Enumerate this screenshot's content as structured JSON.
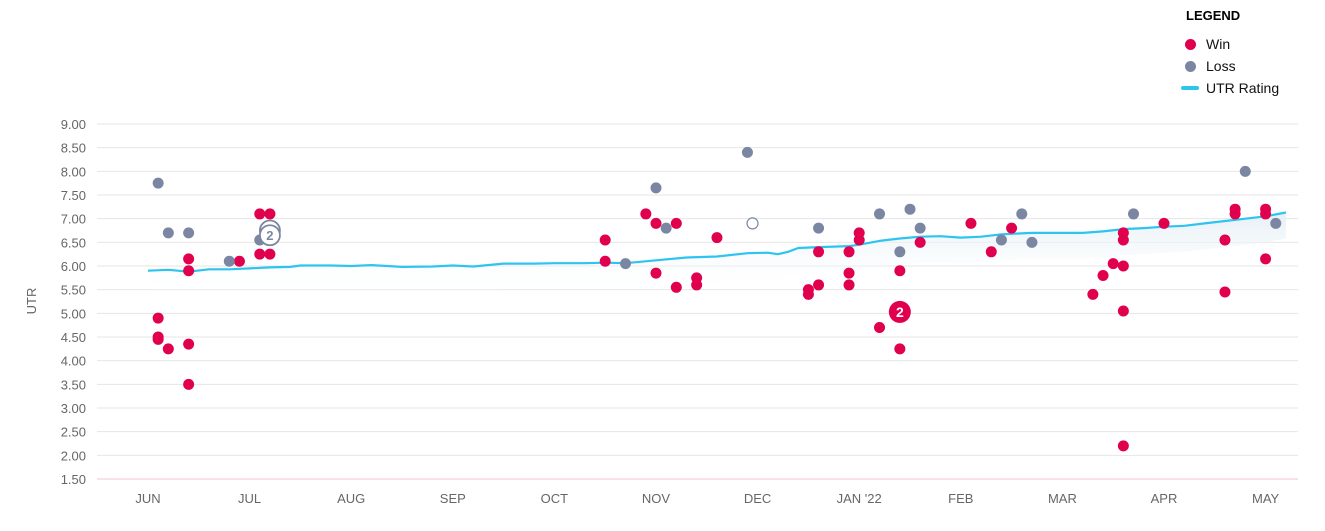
{
  "chart_data": {
    "type": "scatter",
    "ylabel": "UTR",
    "ylim": [
      1.5,
      9.0
    ],
    "yticks": [
      "9.00",
      "8.50",
      "8.00",
      "7.50",
      "7.00",
      "6.50",
      "6.00",
      "5.50",
      "5.00",
      "4.50",
      "4.00",
      "3.50",
      "3.00",
      "2.50",
      "2.00",
      "1.50"
    ],
    "months": [
      "JUN",
      "JUL",
      "AUG",
      "SEP",
      "OCT",
      "NOV",
      "DEC",
      "JAN '22",
      "FEB",
      "MAR",
      "APR",
      "MAY"
    ],
    "grid": true,
    "legend": {
      "title": "LEGEND",
      "placement": "top-right",
      "items": [
        {
          "label": "Win",
          "color": "#e0004d",
          "kind": "dot"
        },
        {
          "label": "Loss",
          "color": "#7a86a2",
          "kind": "dot"
        },
        {
          "label": "UTR Rating",
          "color": "#2ec4f0",
          "kind": "line"
        }
      ]
    },
    "colors": {
      "win": "#e0004d",
      "loss": "#7a86a2",
      "rating": "#2ec4f0"
    },
    "series": [
      {
        "name": "Win",
        "points": [
          [
            0.1,
            4.9
          ],
          [
            0.1,
            4.5
          ],
          [
            0.1,
            4.45
          ],
          [
            0.2,
            4.25
          ],
          [
            0.4,
            6.15
          ],
          [
            0.4,
            5.9
          ],
          [
            0.4,
            4.35
          ],
          [
            0.4,
            3.5
          ],
          [
            0.9,
            6.1
          ],
          [
            1.1,
            7.1
          ],
          [
            1.1,
            6.25
          ],
          [
            1.2,
            7.1
          ],
          [
            1.2,
            6.25
          ],
          [
            4.5,
            6.55
          ],
          [
            4.5,
            6.1
          ],
          [
            4.9,
            7.1
          ],
          [
            5.0,
            6.9
          ],
          [
            5.0,
            5.85
          ],
          [
            5.2,
            6.9
          ],
          [
            5.2,
            5.55
          ],
          [
            5.4,
            5.75
          ],
          [
            5.4,
            5.6
          ],
          [
            5.6,
            6.6
          ],
          [
            6.5,
            5.5
          ],
          [
            6.5,
            5.4
          ],
          [
            6.6,
            6.3
          ],
          [
            6.6,
            5.6
          ],
          [
            6.9,
            6.3
          ],
          [
            6.9,
            5.85
          ],
          [
            6.9,
            5.6
          ],
          [
            7.0,
            6.7
          ],
          [
            7.0,
            6.55
          ],
          [
            7.2,
            4.7
          ],
          [
            7.4,
            5.9
          ],
          [
            7.4,
            4.25
          ],
          [
            7.6,
            6.5
          ],
          [
            8.1,
            6.9
          ],
          [
            8.3,
            6.3
          ],
          [
            8.5,
            6.8
          ],
          [
            9.3,
            5.4
          ],
          [
            9.4,
            5.8
          ],
          [
            9.5,
            6.05
          ],
          [
            9.6,
            6.7
          ],
          [
            9.6,
            6.55
          ],
          [
            9.6,
            6.0
          ],
          [
            9.6,
            5.05
          ],
          [
            9.6,
            2.2
          ],
          [
            10.0,
            6.9
          ],
          [
            10.6,
            6.55
          ],
          [
            10.6,
            5.45
          ],
          [
            10.7,
            7.2
          ],
          [
            10.7,
            7.1
          ],
          [
            11.0,
            7.2
          ],
          [
            11.0,
            7.1
          ],
          [
            11.0,
            6.15
          ]
        ]
      },
      {
        "name": "Loss",
        "points": [
          [
            0.1,
            7.75
          ],
          [
            0.2,
            6.7
          ],
          [
            0.4,
            6.7
          ],
          [
            0.8,
            6.1
          ],
          [
            1.1,
            6.55
          ],
          [
            4.7,
            6.05
          ],
          [
            5.0,
            7.65
          ],
          [
            5.1,
            6.8
          ],
          [
            5.9,
            8.4
          ],
          [
            6.6,
            6.8
          ],
          [
            7.2,
            7.1
          ],
          [
            7.4,
            6.3
          ],
          [
            7.5,
            7.2
          ],
          [
            7.6,
            6.8
          ],
          [
            8.4,
            6.55
          ],
          [
            8.6,
            7.1
          ],
          [
            8.7,
            6.5
          ],
          [
            9.7,
            7.1
          ],
          [
            10.8,
            8.0
          ],
          [
            11.1,
            6.9
          ]
        ]
      },
      {
        "name": "UTR Rating",
        "points": [
          [
            0.0,
            5.9
          ],
          [
            0.2,
            5.92
          ],
          [
            0.4,
            5.88
          ],
          [
            0.6,
            5.93
          ],
          [
            0.8,
            5.93
          ],
          [
            1.0,
            5.95
          ],
          [
            1.2,
            5.97
          ],
          [
            1.4,
            5.98
          ],
          [
            1.5,
            6.01
          ],
          [
            1.8,
            6.01
          ],
          [
            2.0,
            6.0
          ],
          [
            2.2,
            6.02
          ],
          [
            2.5,
            5.98
          ],
          [
            2.8,
            5.99
          ],
          [
            3.0,
            6.01
          ],
          [
            3.2,
            5.99
          ],
          [
            3.5,
            6.05
          ],
          [
            3.8,
            6.05
          ],
          [
            4.0,
            6.06
          ],
          [
            4.3,
            6.06
          ],
          [
            4.5,
            6.07
          ],
          [
            4.7,
            6.06
          ],
          [
            5.0,
            6.12
          ],
          [
            5.3,
            6.18
          ],
          [
            5.6,
            6.2
          ],
          [
            5.9,
            6.27
          ],
          [
            6.1,
            6.28
          ],
          [
            6.2,
            6.25
          ],
          [
            6.3,
            6.3
          ],
          [
            6.4,
            6.38
          ],
          [
            6.6,
            6.4
          ],
          [
            6.9,
            6.42
          ],
          [
            7.0,
            6.45
          ],
          [
            7.2,
            6.53
          ],
          [
            7.4,
            6.58
          ],
          [
            7.6,
            6.62
          ],
          [
            7.8,
            6.63
          ],
          [
            8.0,
            6.6
          ],
          [
            8.2,
            6.62
          ],
          [
            8.4,
            6.67
          ],
          [
            8.7,
            6.7
          ],
          [
            9.0,
            6.7
          ],
          [
            9.2,
            6.7
          ],
          [
            9.4,
            6.73
          ],
          [
            9.6,
            6.78
          ],
          [
            9.8,
            6.8
          ],
          [
            10.0,
            6.83
          ],
          [
            10.2,
            6.85
          ],
          [
            10.4,
            6.9
          ],
          [
            10.6,
            6.95
          ],
          [
            10.8,
            7.0
          ],
          [
            11.0,
            7.05
          ],
          [
            11.2,
            7.13
          ]
        ]
      }
    ],
    "annotations": [
      {
        "label": "2",
        "kind": "win-badge",
        "x": 7.4,
        "y": 5.03
      },
      {
        "label": "2",
        "kind": "loss-badge-outline",
        "x": 1.2,
        "y": 6.75
      },
      {
        "label": "2",
        "kind": "loss-badge-outline",
        "x": 1.2,
        "y": 6.65
      },
      {
        "label": "",
        "kind": "hollow-point",
        "x": 5.95,
        "y": 6.9
      }
    ]
  }
}
